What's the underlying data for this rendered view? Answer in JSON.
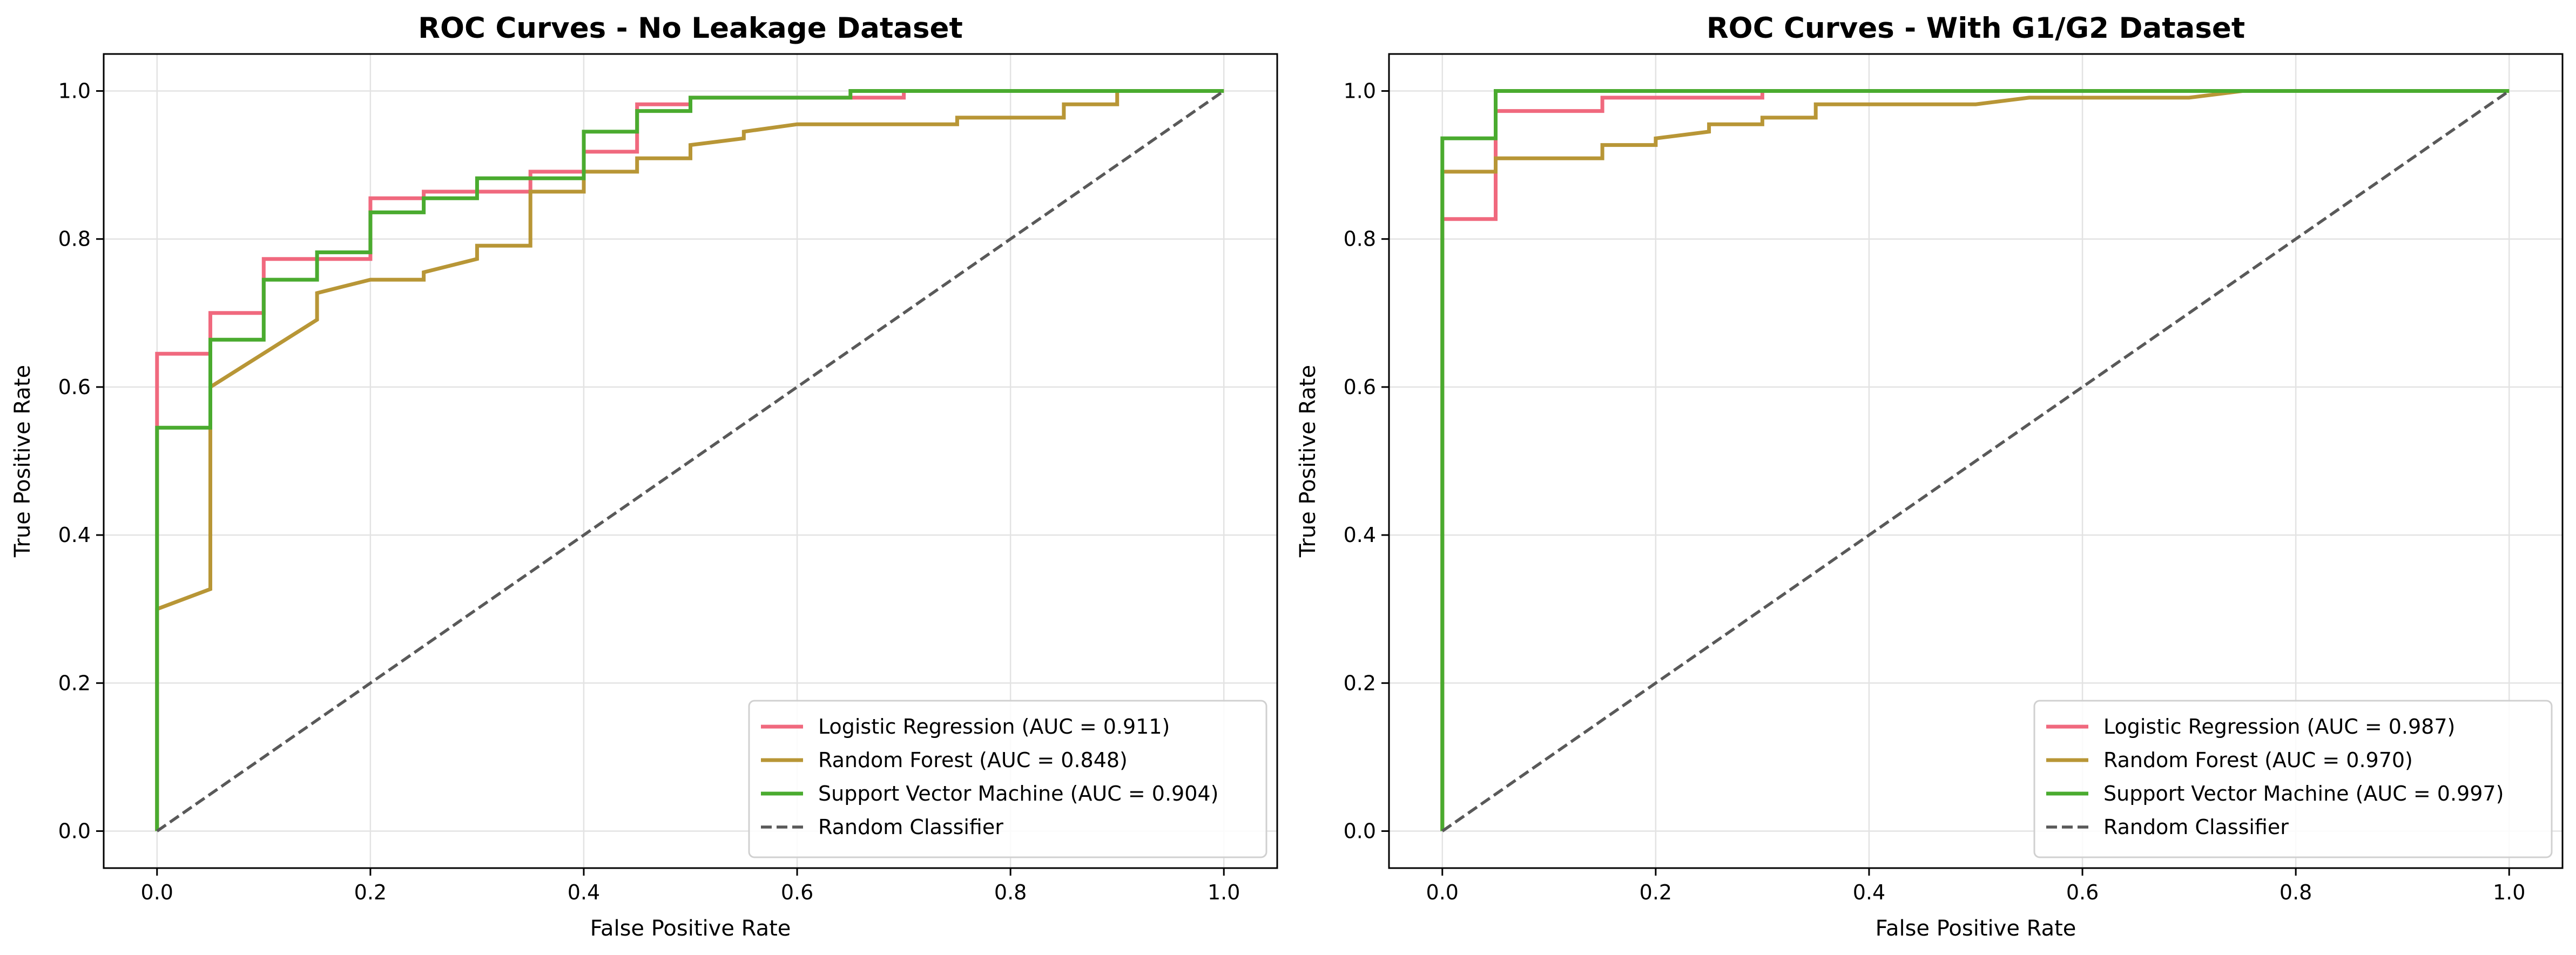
{
  "chart_data": [
    {
      "type": "line",
      "title": "ROC Curves - No Leakage Dataset",
      "xlabel": "False Positive Rate",
      "ylabel": "True Positive Rate",
      "xlim": [
        -0.05,
        1.05
      ],
      "ylim": [
        -0.05,
        1.05
      ],
      "xticks": [
        "0.0",
        "0.2",
        "0.4",
        "0.6",
        "0.8",
        "1.0"
      ],
      "yticks": [
        "0.0",
        "0.2",
        "0.4",
        "0.6",
        "0.8",
        "1.0"
      ],
      "grid": true,
      "legend_position": "lower right",
      "series": [
        {
          "name": "Logistic Regression (AUC = 0.911)",
          "color": "#f0697e",
          "style": "solid",
          "points": [
            [
              0,
              0
            ],
            [
              0,
              0.645
            ],
            [
              0.05,
              0.645
            ],
            [
              0.05,
              0.7
            ],
            [
              0.1,
              0.7
            ],
            [
              0.1,
              0.773
            ],
            [
              0.2,
              0.773
            ],
            [
              0.2,
              0.855
            ],
            [
              0.25,
              0.855
            ],
            [
              0.25,
              0.864
            ],
            [
              0.35,
              0.864
            ],
            [
              0.35,
              0.891
            ],
            [
              0.4,
              0.891
            ],
            [
              0.4,
              0.918
            ],
            [
              0.45,
              0.918
            ],
            [
              0.45,
              0.982
            ],
            [
              0.5,
              0.982
            ],
            [
              0.5,
              0.991
            ],
            [
              0.7,
              0.991
            ],
            [
              0.7,
              1.0
            ],
            [
              1.0,
              1.0
            ]
          ]
        },
        {
          "name": "Random Forest (AUC = 0.848)",
          "color": "#b89636",
          "style": "solid",
          "points": [
            [
              0,
              0
            ],
            [
              0,
              0.3
            ],
            [
              0.05,
              0.327
            ],
            [
              0.05,
              0.6
            ],
            [
              0.15,
              0.691
            ],
            [
              0.15,
              0.727
            ],
            [
              0.2,
              0.745
            ],
            [
              0.25,
              0.745
            ],
            [
              0.25,
              0.755
            ],
            [
              0.3,
              0.773
            ],
            [
              0.3,
              0.791
            ],
            [
              0.35,
              0.791
            ],
            [
              0.35,
              0.864
            ],
            [
              0.4,
              0.864
            ],
            [
              0.4,
              0.891
            ],
            [
              0.45,
              0.891
            ],
            [
              0.45,
              0.909
            ],
            [
              0.5,
              0.909
            ],
            [
              0.5,
              0.927
            ],
            [
              0.55,
              0.936
            ],
            [
              0.55,
              0.945
            ],
            [
              0.6,
              0.955
            ],
            [
              0.75,
              0.955
            ],
            [
              0.75,
              0.964
            ],
            [
              0.85,
              0.964
            ],
            [
              0.85,
              0.982
            ],
            [
              0.9,
              0.982
            ],
            [
              0.9,
              1.0
            ],
            [
              1.0,
              1.0
            ]
          ]
        },
        {
          "name": "Support Vector Machine (AUC = 0.904)",
          "color": "#4aab2f",
          "style": "solid",
          "points": [
            [
              0,
              0
            ],
            [
              0,
              0.545
            ],
            [
              0.05,
              0.545
            ],
            [
              0.05,
              0.664
            ],
            [
              0.1,
              0.664
            ],
            [
              0.1,
              0.745
            ],
            [
              0.15,
              0.745
            ],
            [
              0.15,
              0.782
            ],
            [
              0.2,
              0.782
            ],
            [
              0.2,
              0.836
            ],
            [
              0.25,
              0.836
            ],
            [
              0.25,
              0.855
            ],
            [
              0.3,
              0.855
            ],
            [
              0.3,
              0.882
            ],
            [
              0.4,
              0.882
            ],
            [
              0.4,
              0.945
            ],
            [
              0.45,
              0.945
            ],
            [
              0.45,
              0.973
            ],
            [
              0.5,
              0.973
            ],
            [
              0.5,
              0.991
            ],
            [
              0.65,
              0.991
            ],
            [
              0.65,
              1.0
            ],
            [
              1.0,
              1.0
            ]
          ]
        },
        {
          "name": "Random Classifier",
          "color": "#595959",
          "style": "dashed",
          "points": [
            [
              0,
              0
            ],
            [
              1,
              1
            ]
          ]
        }
      ]
    },
    {
      "type": "line",
      "title": "ROC Curves - With G1/G2 Dataset",
      "xlabel": "False Positive Rate",
      "ylabel": "True Positive Rate",
      "xlim": [
        -0.05,
        1.05
      ],
      "ylim": [
        -0.05,
        1.05
      ],
      "xticks": [
        "0.0",
        "0.2",
        "0.4",
        "0.6",
        "0.8",
        "1.0"
      ],
      "yticks": [
        "0.0",
        "0.2",
        "0.4",
        "0.6",
        "0.8",
        "1.0"
      ],
      "grid": true,
      "legend_position": "lower right",
      "series": [
        {
          "name": "Logistic Regression (AUC = 0.987)",
          "color": "#f0697e",
          "style": "solid",
          "points": [
            [
              0,
              0
            ],
            [
              0,
              0.827
            ],
            [
              0.05,
              0.827
            ],
            [
              0.05,
              0.973
            ],
            [
              0.15,
              0.973
            ],
            [
              0.15,
              0.991
            ],
            [
              0.3,
              0.991
            ],
            [
              0.3,
              1.0
            ],
            [
              1.0,
              1.0
            ]
          ]
        },
        {
          "name": "Random Forest (AUC = 0.970)",
          "color": "#b89636",
          "style": "solid",
          "points": [
            [
              0,
              0
            ],
            [
              0,
              0.891
            ],
            [
              0.05,
              0.891
            ],
            [
              0.05,
              0.909
            ],
            [
              0.15,
              0.909
            ],
            [
              0.15,
              0.927
            ],
            [
              0.2,
              0.927
            ],
            [
              0.2,
              0.936
            ],
            [
              0.25,
              0.945
            ],
            [
              0.25,
              0.955
            ],
            [
              0.3,
              0.955
            ],
            [
              0.3,
              0.964
            ],
            [
              0.35,
              0.964
            ],
            [
              0.35,
              0.982
            ],
            [
              0.5,
              0.982
            ],
            [
              0.55,
              0.991
            ],
            [
              0.7,
              0.991
            ],
            [
              0.75,
              1.0
            ],
            [
              1.0,
              1.0
            ]
          ]
        },
        {
          "name": "Support Vector Machine (AUC = 0.997)",
          "color": "#4aab2f",
          "style": "solid",
          "points": [
            [
              0,
              0
            ],
            [
              0,
              0.936
            ],
            [
              0.05,
              0.936
            ],
            [
              0.05,
              1.0
            ],
            [
              1.0,
              1.0
            ]
          ]
        },
        {
          "name": "Random Classifier",
          "color": "#595959",
          "style": "dashed",
          "points": [
            [
              0,
              0
            ],
            [
              1,
              1
            ]
          ]
        }
      ]
    }
  ]
}
